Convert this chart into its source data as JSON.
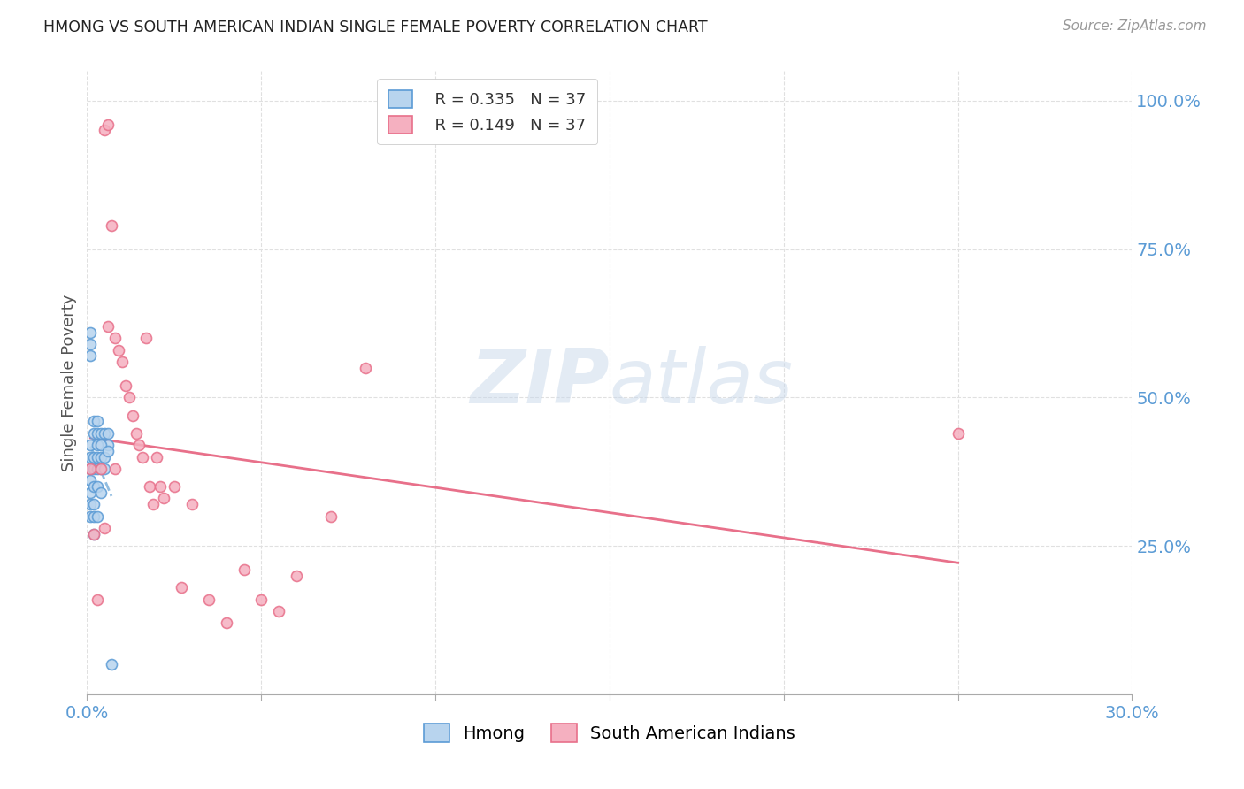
{
  "title": "HMONG VS SOUTH AMERICAN INDIAN SINGLE FEMALE POVERTY CORRELATION CHART",
  "source": "Source: ZipAtlas.com",
  "ylabel": "Single Female Poverty",
  "xlim": [
    0.0,
    0.3
  ],
  "ylim": [
    0.0,
    1.05
  ],
  "xticks": [
    0.0,
    0.05,
    0.1,
    0.15,
    0.2,
    0.25,
    0.3
  ],
  "xtick_labels": [
    "0.0%",
    "",
    "",
    "",
    "",
    "",
    "30.0%"
  ],
  "ytick_labels_right": [
    "100.0%",
    "75.0%",
    "50.0%",
    "25.0%"
  ],
  "yticks_right": [
    1.0,
    0.75,
    0.5,
    0.25
  ],
  "legend_R_hmong": "0.335",
  "legend_N_hmong": "37",
  "legend_R_sam": "0.149",
  "legend_N_sam": "37",
  "legend_label_hmong": "Hmong",
  "legend_label_sam": "South American Indians",
  "hmong_color_fill": "#b8d4ee",
  "hmong_color_edge": "#5b9bd5",
  "sam_color_fill": "#f5b0c0",
  "sam_color_edge": "#e8708a",
  "hmong_line_color": "#90bce0",
  "sam_line_color": "#e8708a",
  "hmong_x": [
    0.002,
    0.002,
    0.003,
    0.003,
    0.004,
    0.005,
    0.006,
    0.006,
    0.001,
    0.001,
    0.001,
    0.001,
    0.001,
    0.001,
    0.001,
    0.001,
    0.001,
    0.001,
    0.002,
    0.002,
    0.002,
    0.002,
    0.002,
    0.002,
    0.003,
    0.003,
    0.003,
    0.003,
    0.003,
    0.004,
    0.004,
    0.004,
    0.004,
    0.005,
    0.005,
    0.006,
    0.007
  ],
  "hmong_y": [
    0.46,
    0.44,
    0.44,
    0.46,
    0.44,
    0.44,
    0.44,
    0.42,
    0.61,
    0.59,
    0.57,
    0.42,
    0.4,
    0.38,
    0.36,
    0.34,
    0.32,
    0.3,
    0.4,
    0.38,
    0.35,
    0.32,
    0.3,
    0.27,
    0.42,
    0.4,
    0.38,
    0.35,
    0.3,
    0.42,
    0.4,
    0.38,
    0.34,
    0.4,
    0.38,
    0.41,
    0.05
  ],
  "sam_x": [
    0.001,
    0.002,
    0.003,
    0.004,
    0.005,
    0.005,
    0.006,
    0.006,
    0.007,
    0.008,
    0.008,
    0.009,
    0.01,
    0.011,
    0.012,
    0.013,
    0.014,
    0.015,
    0.016,
    0.017,
    0.018,
    0.019,
    0.02,
    0.021,
    0.022,
    0.025,
    0.027,
    0.03,
    0.035,
    0.04,
    0.045,
    0.05,
    0.055,
    0.06,
    0.07,
    0.08,
    0.25
  ],
  "sam_y": [
    0.38,
    0.27,
    0.16,
    0.38,
    0.28,
    0.95,
    0.62,
    0.96,
    0.79,
    0.6,
    0.38,
    0.58,
    0.56,
    0.52,
    0.5,
    0.47,
    0.44,
    0.42,
    0.4,
    0.6,
    0.35,
    0.32,
    0.4,
    0.35,
    0.33,
    0.35,
    0.18,
    0.32,
    0.16,
    0.12,
    0.21,
    0.16,
    0.14,
    0.2,
    0.3,
    0.55,
    0.44
  ],
  "dot_size": 75,
  "grid_color": "#e0e0e0",
  "watermark_zip": "ZIP",
  "watermark_atlas": "atlas",
  "watermark_color_zip": "#c8d8ea",
  "watermark_color_atlas": "#c8d8ea",
  "background_color": "#ffffff",
  "title_color": "#222222",
  "axis_label_color": "#555555",
  "right_tick_color": "#5b9bd5",
  "bottom_tick_color": "#5b9bd5"
}
